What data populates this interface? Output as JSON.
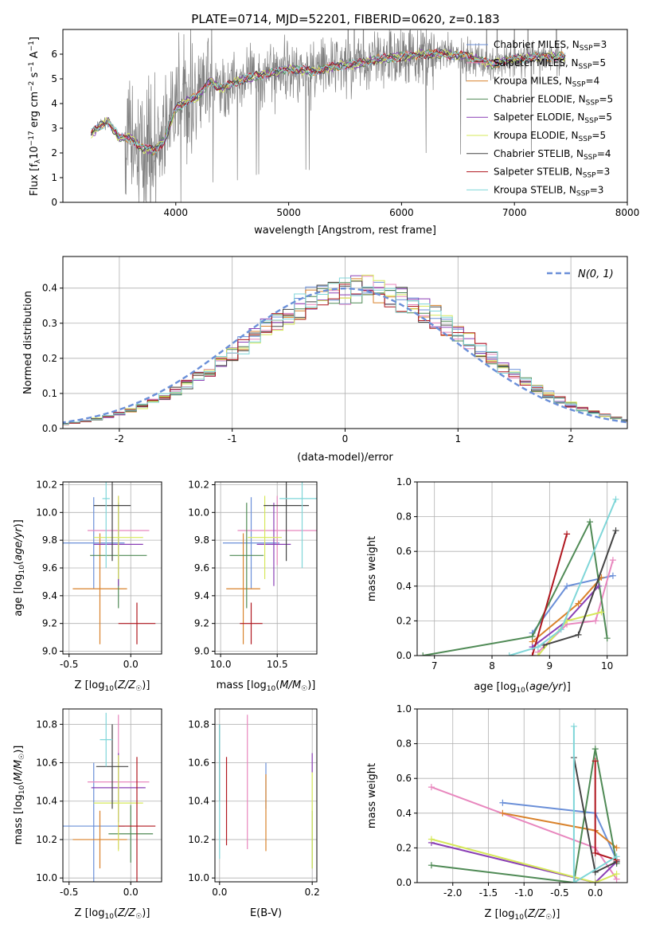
{
  "figure_title": "PLATE=0714, MJD=52201, FIBERID=0620, z=0.183",
  "colors": {
    "Chabrier MILES": "#6a8fd8",
    "Salpeter MILES": "#e887be",
    "Kroupa MILES": "#d9822b",
    "Chabrier ELODIE": "#4f8a55",
    "Salpeter ELODIE": "#8a3fb5",
    "Kroupa ELODIE": "#d6e85a",
    "Chabrier STELIB": "#444444",
    "Salpeter STELIB": "#b0171f",
    "Kroupa STELIB": "#7fd6d8",
    "data": "#808080",
    "normal": "#6a8fd8"
  },
  "chart_data": [
    {
      "id": "spectrum",
      "type": "line",
      "title": "PLATE=0714, MJD=52201, FIBERID=0620, z=0.183",
      "xlabel": "wavelength [Angstrom, rest frame]",
      "ylabel": "Flux [f_λ10^-17 erg cm^-2 s^-1 A^-1]",
      "xlim": [
        3000,
        8000
      ],
      "ylim": [
        0,
        7
      ],
      "xticks": [
        4000,
        5000,
        6000,
        7000,
        8000
      ],
      "yticks": [
        0,
        1,
        2,
        3,
        4,
        5,
        6
      ],
      "legend_position": "right",
      "legend": [
        {
          "model": "Chabrier MILES",
          "nssp": "=3"
        },
        {
          "model": "Salpeter MILES",
          "nssp": "=5"
        },
        {
          "model": "Kroupa MILES",
          "nssp": "=4"
        },
        {
          "model": "Chabrier ELODIE",
          "nssp": "=5"
        },
        {
          "model": "Salpeter ELODIE",
          "nssp": "=5"
        },
        {
          "model": "Kroupa ELODIE",
          "nssp": "=5"
        },
        {
          "model": "Chabrier STELIB",
          "nssp": "=4"
        },
        {
          "model": "Salpeter STELIB",
          "nssp": "=3"
        },
        {
          "model": "Kroupa STELIB",
          "nssp": "=3"
        }
      ],
      "continuum": {
        "x": [
          3250,
          3400,
          3500,
          3600,
          3700,
          3800,
          3900,
          4000,
          4100,
          4200,
          4300,
          4400,
          4600,
          4800,
          5000,
          5200,
          5400,
          5600,
          5800,
          6000,
          6200,
          6400,
          6600,
          6800,
          7000,
          7200,
          7400
        ],
        "y": [
          2.8,
          3.3,
          2.6,
          2.6,
          2.2,
          2.1,
          2.5,
          3.8,
          4.1,
          4.3,
          4.9,
          4.6,
          5.0,
          5.2,
          5.4,
          5.3,
          5.5,
          5.6,
          5.8,
          5.9,
          6.0,
          6.0,
          5.9,
          5.6,
          5.8,
          5.9,
          5.9
        ]
      }
    },
    {
      "id": "residual-histogram",
      "type": "histogram",
      "xlabel": "(data-model)/error",
      "ylabel": "Normed distribution",
      "xlim": [
        -2.5,
        2.5
      ],
      "ylim": [
        0,
        0.49
      ],
      "xticks": [
        -2,
        -1,
        0,
        1,
        2
      ],
      "yticks": [
        0.0,
        0.1,
        0.2,
        0.3,
        0.4
      ],
      "legend_position": "top-right",
      "legend_label": "N(0, 1)",
      "bin_width": 0.1
    },
    {
      "id": "age-vs-Z",
      "type": "scatter",
      "xlabel": "Z [log10(Z/Z☉)]",
      "ylabel": "age  [log10(age/yr)]",
      "xlim": [
        -0.55,
        0.25
      ],
      "ylim": [
        8.98,
        10.22
      ],
      "xticks": [
        -0.5,
        0.0
      ],
      "yticks": [
        9.0,
        9.2,
        9.4,
        9.6,
        9.8,
        10.0,
        10.2
      ],
      "points": [
        {
          "model": "Chabrier MILES",
          "x": -0.3,
          "y": 9.78,
          "xerr": 0.25,
          "yerr": 0.33
        },
        {
          "model": "Salpeter MILES",
          "x": -0.1,
          "y": 9.87,
          "xerr": 0.25,
          "yerr": 0.25
        },
        {
          "model": "Kroupa MILES",
          "x": -0.25,
          "y": 9.45,
          "xerr": 0.22,
          "yerr": 0.4
        },
        {
          "model": "Chabrier ELODIE",
          "x": -0.1,
          "y": 9.69,
          "xerr": 0.23,
          "yerr": 0.38
        },
        {
          "model": "Salpeter ELODIE",
          "x": -0.1,
          "y": 9.77,
          "xerr": 0.2,
          "yerr": 0.3
        },
        {
          "model": "Kroupa ELODIE",
          "x": -0.1,
          "y": 9.82,
          "xerr": 0.2,
          "yerr": 0.3
        },
        {
          "model": "Chabrier STELIB",
          "x": -0.15,
          "y": 10.05,
          "xerr": 0.15,
          "yerr": 0.4
        },
        {
          "model": "Salpeter STELIB",
          "x": 0.05,
          "y": 9.2,
          "xerr": 0.15,
          "yerr": 0.15
        },
        {
          "model": "Kroupa STELIB",
          "x": -0.2,
          "y": 10.1,
          "xerr": 0.03,
          "yerr": 0.5
        }
      ]
    },
    {
      "id": "age-vs-mass",
      "type": "scatter",
      "xlabel": "mass [log10(M/M☉)]",
      "ylabel": "",
      "xlim": [
        9.95,
        10.85
      ],
      "ylim": [
        8.98,
        10.22
      ],
      "xticks": [
        10.0,
        10.5
      ],
      "yticks": [
        9.0,
        9.2,
        9.4,
        9.6,
        9.8,
        10.0,
        10.2
      ],
      "points": [
        {
          "model": "Chabrier MILES",
          "x": 10.27,
          "y": 9.78,
          "xerr": 0.25,
          "yerr": 0.33
        },
        {
          "model": "Salpeter MILES",
          "x": 10.5,
          "y": 9.87,
          "xerr": 0.35,
          "yerr": 0.25
        },
        {
          "model": "Kroupa MILES",
          "x": 10.2,
          "y": 9.45,
          "xerr": 0.15,
          "yerr": 0.4
        },
        {
          "model": "Chabrier ELODIE",
          "x": 10.23,
          "y": 9.69,
          "xerr": 0.15,
          "yerr": 0.38
        },
        {
          "model": "Salpeter ELODIE",
          "x": 10.47,
          "y": 9.77,
          "xerr": 0.15,
          "yerr": 0.3
        },
        {
          "model": "Kroupa ELODIE",
          "x": 10.39,
          "y": 9.82,
          "xerr": 0.15,
          "yerr": 0.3
        },
        {
          "model": "Chabrier STELIB",
          "x": 10.58,
          "y": 10.05,
          "xerr": 0.2,
          "yerr": 0.4
        },
        {
          "model": "Salpeter STELIB",
          "x": 10.27,
          "y": 9.2,
          "xerr": 0.1,
          "yerr": 0.15
        },
        {
          "model": "Kroupa STELIB",
          "x": 10.72,
          "y": 10.1,
          "xerr": 0.2,
          "yerr": 0.5
        }
      ]
    },
    {
      "id": "weight-vs-age",
      "type": "line",
      "xlabel": "age  [log10(age/yr)]",
      "ylabel": "mass weight",
      "xlim": [
        6.7,
        10.35
      ],
      "ylim": [
        0,
        1.0
      ],
      "xticks": [
        7,
        8,
        9,
        10
      ],
      "yticks": [
        0.0,
        0.2,
        0.4,
        0.6,
        0.8,
        1.0
      ],
      "series": [
        {
          "model": "Chabrier MILES",
          "x": [
            8.7,
            9.3,
            10.1
          ],
          "y": [
            0.13,
            0.4,
            0.46
          ]
        },
        {
          "model": "Salpeter MILES",
          "x": [
            8.8,
            9.3,
            9.8,
            10.1
          ],
          "y": [
            0.02,
            0.18,
            0.2,
            0.55
          ]
        },
        {
          "model": "Kroupa MILES",
          "x": [
            8.7,
            9.5,
            9.9
          ],
          "y": [
            0.08,
            0.3,
            0.45
          ]
        },
        {
          "model": "Chabrier ELODIE",
          "x": [
            6.8,
            8.7,
            9.7,
            10.0
          ],
          "y": [
            0.0,
            0.11,
            0.77,
            0.1
          ]
        },
        {
          "model": "Salpeter ELODIE",
          "x": [
            8.7,
            9.3,
            9.85
          ],
          "y": [
            0.05,
            0.2,
            0.4
          ]
        },
        {
          "model": "Kroupa ELODIE",
          "x": [
            8.8,
            9.3,
            9.9
          ],
          "y": [
            0.0,
            0.2,
            0.25
          ]
        },
        {
          "model": "Chabrier STELIB",
          "x": [
            8.9,
            9.5,
            10.15
          ],
          "y": [
            0.06,
            0.12,
            0.72
          ]
        },
        {
          "model": "Salpeter STELIB",
          "x": [
            8.7,
            9.3
          ],
          "y": [
            0.0,
            0.7
          ]
        },
        {
          "model": "Kroupa STELIB",
          "x": [
            8.3,
            8.8,
            9.2,
            10.15
          ],
          "y": [
            0.0,
            0.05,
            0.15,
            0.9
          ]
        }
      ]
    },
    {
      "id": "mass-vs-Z",
      "type": "scatter",
      "xlabel": "Z [log10(Z/Z☉)]",
      "ylabel": "mass [log10(M/M☉)]",
      "xlim": [
        -0.55,
        0.25
      ],
      "ylim": [
        9.98,
        10.88
      ],
      "xticks": [
        -0.5,
        0.0
      ],
      "yticks": [
        10.0,
        10.2,
        10.4,
        10.6,
        10.8
      ],
      "points": [
        {
          "model": "Chabrier MILES",
          "x": -0.3,
          "y": 10.27,
          "xerr": 0.25,
          "yerr": 0.33
        },
        {
          "model": "Salpeter MILES",
          "x": -0.1,
          "y": 10.5,
          "xerr": 0.25,
          "yerr": 0.35
        },
        {
          "model": "Kroupa MILES",
          "x": -0.25,
          "y": 10.2,
          "xerr": 0.22,
          "yerr": 0.15
        },
        {
          "model": "Chabrier ELODIE",
          "x": 0.0,
          "y": 10.23,
          "xerr": 0.18,
          "yerr": 0.15
        },
        {
          "model": "Salpeter ELODIE",
          "x": -0.1,
          "y": 10.47,
          "xerr": 0.22,
          "yerr": 0.18
        },
        {
          "model": "Kroupa ELODIE",
          "x": -0.1,
          "y": 10.39,
          "xerr": 0.2,
          "yerr": 0.25
        },
        {
          "model": "Chabrier STELIB",
          "x": -0.15,
          "y": 10.58,
          "xerr": 0.13,
          "yerr": 0.22
        },
        {
          "model": "Salpeter STELIB",
          "x": 0.05,
          "y": 10.27,
          "xerr": 0.15,
          "yerr": 0.36
        },
        {
          "model": "Kroupa STELIB",
          "x": -0.2,
          "y": 10.72,
          "xerr": 0.05,
          "yerr": 0.14
        }
      ]
    },
    {
      "id": "mass-vs-EBV",
      "type": "scatter",
      "xlabel": "E(B-V)",
      "ylabel": "",
      "xlim": [
        -0.01,
        0.21
      ],
      "ylim": [
        9.98,
        10.88
      ],
      "xticks": [
        0.0,
        0.2
      ],
      "yticks": [
        10.0,
        10.2,
        10.4,
        10.6,
        10.8
      ],
      "points": [
        {
          "model": "Chabrier MILES",
          "x": 0.1,
          "y": 10.48,
          "xerr": 0.0,
          "yerr": 0.12
        },
        {
          "model": "Salpeter MILES",
          "x": 0.06,
          "y": 10.5,
          "xerr": 0.0,
          "yerr": 0.35
        },
        {
          "model": "Kroupa MILES",
          "x": 0.1,
          "y": 10.34,
          "xerr": 0.0,
          "yerr": 0.2
        },
        {
          "model": "Chabrier ELODIE",
          "x": 0.2,
          "y": 10.2,
          "xerr": 0.0,
          "yerr": 0.15
        },
        {
          "model": "Salpeter ELODIE",
          "x": 0.2,
          "y": 10.6,
          "xerr": 0.0,
          "yerr": 0.05
        },
        {
          "model": "Kroupa ELODIE",
          "x": 0.2,
          "y": 10.3,
          "xerr": 0.0,
          "yerr": 0.25
        },
        {
          "model": "Chabrier STELIB",
          "x": 0.0,
          "y": 10.6,
          "xerr": 0.0,
          "yerr": 0.2
        },
        {
          "model": "Salpeter STELIB",
          "x": 0.015,
          "y": 10.4,
          "xerr": 0.0,
          "yerr": 0.23
        },
        {
          "model": "Kroupa STELIB",
          "x": 0.0,
          "y": 10.45,
          "xerr": 0.0,
          "yerr": 0.35
        }
      ]
    },
    {
      "id": "weight-vs-Z",
      "type": "line",
      "xlabel": "Z [log10(Z/Z☉)]",
      "ylabel": "mass weight",
      "xlim": [
        -2.5,
        0.45
      ],
      "ylim": [
        0,
        1.0
      ],
      "xticks": [
        -2.0,
        -1.5,
        -1.0,
        -0.5,
        0.0
      ],
      "yticks": [
        0.0,
        0.2,
        0.4,
        0.6,
        0.8,
        1.0
      ],
      "series": [
        {
          "model": "Chabrier MILES",
          "x": [
            -1.3,
            0.0,
            0.3
          ],
          "y": [
            0.46,
            0.4,
            0.13
          ]
        },
        {
          "model": "Salpeter MILES",
          "x": [
            -2.3,
            0.0,
            0.3
          ],
          "y": [
            0.55,
            0.2,
            0.02
          ]
        },
        {
          "model": "Kroupa MILES",
          "x": [
            -1.3,
            0.0,
            0.3
          ],
          "y": [
            0.4,
            0.3,
            0.2
          ]
        },
        {
          "model": "Chabrier ELODIE",
          "x": [
            -2.3,
            -0.3,
            0.0,
            0.3
          ],
          "y": [
            0.1,
            0.0,
            0.77,
            0.11
          ]
        },
        {
          "model": "Salpeter ELODIE",
          "x": [
            -2.3,
            0.0,
            0.3
          ],
          "y": [
            0.23,
            0.0,
            0.12
          ]
        },
        {
          "model": "Kroupa ELODIE",
          "x": [
            -2.3,
            0.0,
            0.3
          ],
          "y": [
            0.25,
            0.0,
            0.05
          ]
        },
        {
          "model": "Chabrier STELIB",
          "x": [
            -0.3,
            0.0,
            0.3
          ],
          "y": [
            0.72,
            0.06,
            0.12
          ]
        },
        {
          "model": "Salpeter STELIB",
          "x": [
            0.0,
            0.0,
            0.3
          ],
          "y": [
            0.7,
            0.17,
            0.13
          ]
        },
        {
          "model": "Kroupa STELIB",
          "x": [
            -0.3,
            -0.3,
            0.3
          ],
          "y": [
            0.9,
            0.0,
            0.15
          ]
        }
      ]
    }
  ]
}
